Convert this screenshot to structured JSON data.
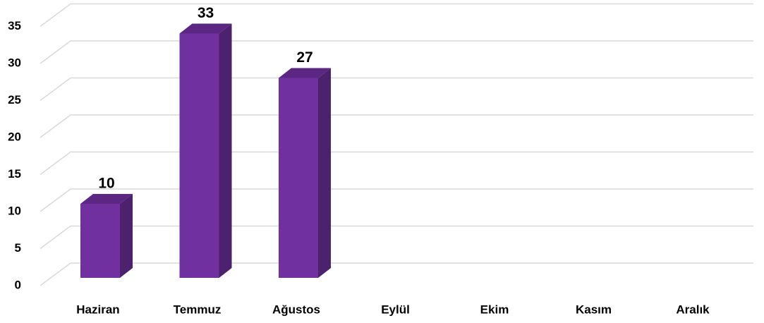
{
  "chart_data": {
    "type": "bar3d",
    "categories": [
      "Haziran",
      "Temmuz",
      "Ağustos",
      "Eylül",
      "Ekim",
      "Kasım",
      "Aralık"
    ],
    "values": [
      10,
      33,
      27,
      null,
      null,
      null,
      null
    ],
    "color": "#7030a0",
    "ylim": [
      0,
      35
    ],
    "yticks": [
      0,
      5,
      10,
      15,
      20,
      25,
      30,
      35
    ],
    "grid": true
  }
}
